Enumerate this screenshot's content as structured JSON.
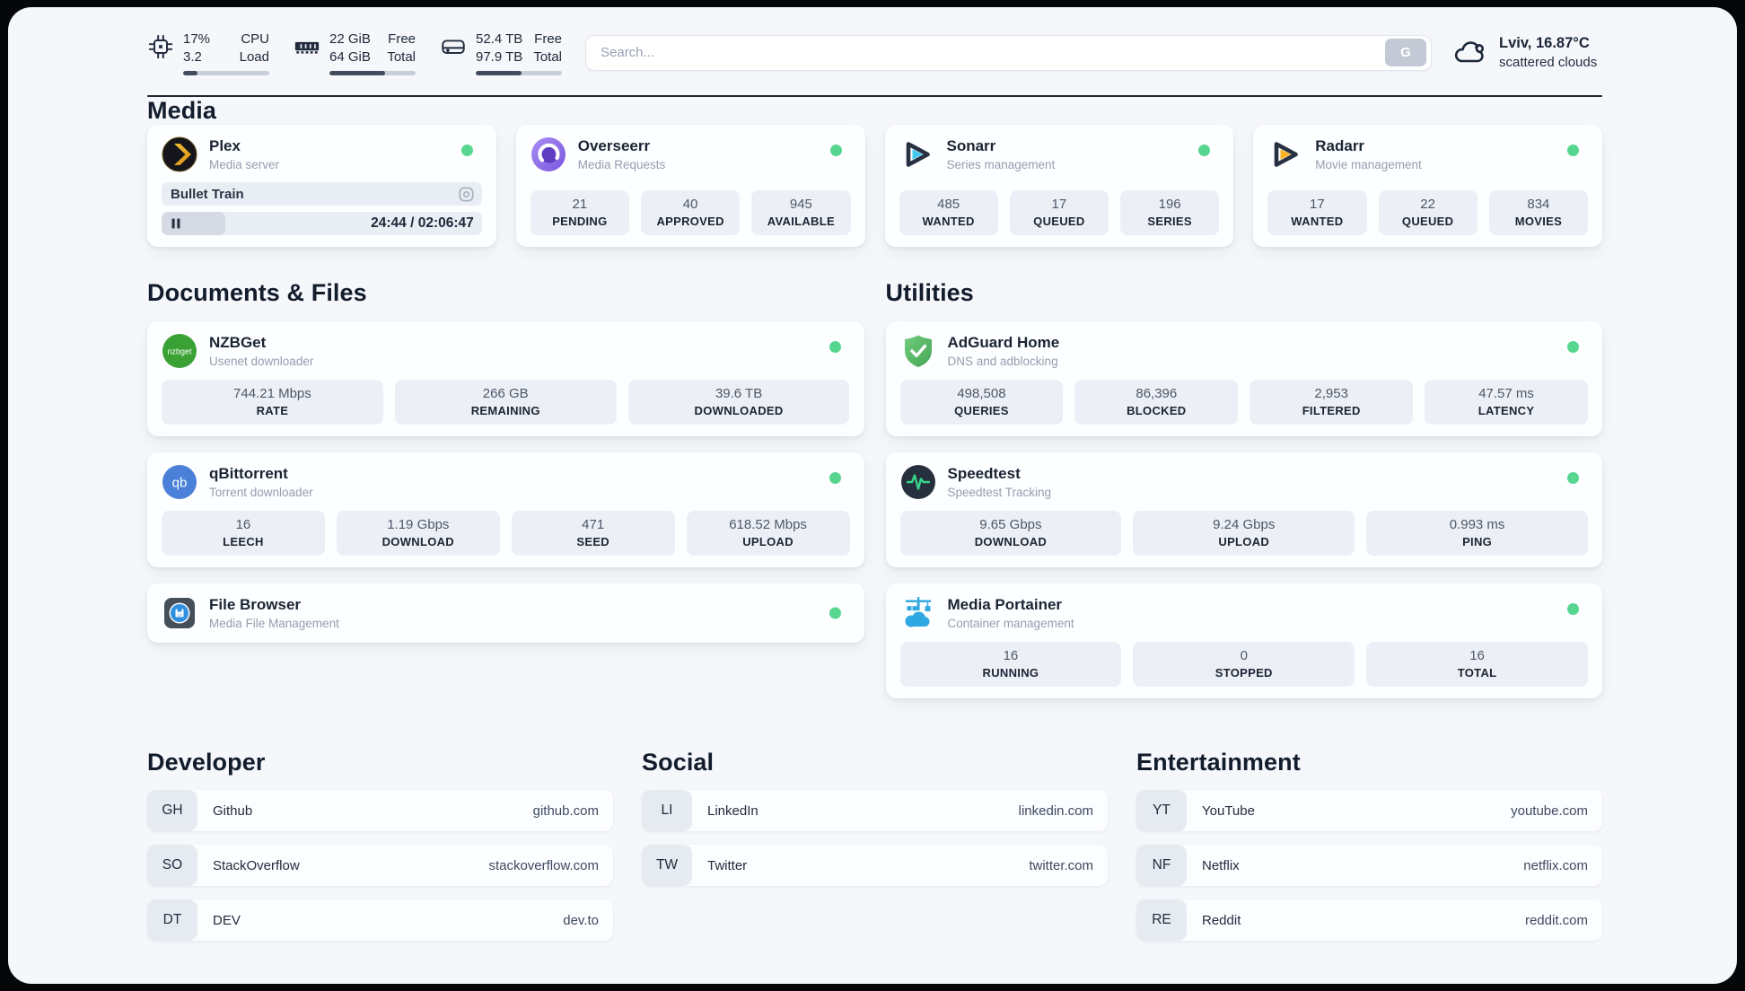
{
  "header": {
    "metrics": [
      {
        "value_top": "17%",
        "value_bottom": "3.2",
        "label_top": "CPU",
        "label_bottom": "Load",
        "progress": 17
      },
      {
        "value_top": "22 GiB",
        "value_bottom": "64 GiB",
        "label_top": "Free",
        "label_bottom": "Total",
        "progress": 65
      },
      {
        "value_top": "52.4 TB",
        "value_bottom": "97.9 TB",
        "label_top": "Free",
        "label_bottom": "Total",
        "progress": 53
      }
    ],
    "search": {
      "placeholder": "Search...",
      "button_label": "G"
    },
    "weather": {
      "location_temp": "Lviv, 16.87°C",
      "condition": "scattered clouds"
    }
  },
  "media": {
    "title": "Media",
    "plex": {
      "name": "Plex",
      "subtitle": "Media server",
      "now_playing": "Bullet Train",
      "time": "24:44 / 02:06:47",
      "progress": 20
    },
    "overseerr": {
      "name": "Overseerr",
      "subtitle": "Media Requests",
      "stats": [
        {
          "value": "21",
          "label": "PENDING"
        },
        {
          "value": "40",
          "label": "APPROVED"
        },
        {
          "value": "945",
          "label": "AVAILABLE"
        }
      ]
    },
    "sonarr": {
      "name": "Sonarr",
      "subtitle": "Series management",
      "stats": [
        {
          "value": "485",
          "label": "WANTED"
        },
        {
          "value": "17",
          "label": "QUEUED"
        },
        {
          "value": "196",
          "label": "SERIES"
        }
      ]
    },
    "radarr": {
      "name": "Radarr",
      "subtitle": "Movie management",
      "stats": [
        {
          "value": "17",
          "label": "WANTED"
        },
        {
          "value": "22",
          "label": "QUEUED"
        },
        {
          "value": "834",
          "label": "MOVIES"
        }
      ]
    }
  },
  "documents": {
    "title": "Documents & Files",
    "nzbget": {
      "name": "NZBGet",
      "subtitle": "Usenet downloader",
      "icon_text": "nzbget",
      "stats": [
        {
          "value": "744.21 Mbps",
          "label": "RATE"
        },
        {
          "value": "266 GB",
          "label": "REMAINING"
        },
        {
          "value": "39.6 TB",
          "label": "DOWNLOADED"
        }
      ]
    },
    "qbittorrent": {
      "name": "qBittorrent",
      "subtitle": "Torrent downloader",
      "icon_text": "qb",
      "stats": [
        {
          "value": "16",
          "label": "LEECH"
        },
        {
          "value": "1.19 Gbps",
          "label": "DOWNLOAD"
        },
        {
          "value": "471",
          "label": "SEED"
        },
        {
          "value": "618.52 Mbps",
          "label": "UPLOAD"
        }
      ]
    },
    "filebrowser": {
      "name": "File Browser",
      "subtitle": "Media File Management"
    }
  },
  "utilities": {
    "title": "Utilities",
    "adguard": {
      "name": "AdGuard Home",
      "subtitle": "DNS and adblocking",
      "stats": [
        {
          "value": "498,508",
          "label": "QUERIES"
        },
        {
          "value": "86,396",
          "label": "BLOCKED"
        },
        {
          "value": "2,953",
          "label": "FILTERED"
        },
        {
          "value": "47.57 ms",
          "label": "LATENCY"
        }
      ]
    },
    "speedtest": {
      "name": "Speedtest",
      "subtitle": "Speedtest Tracking",
      "stats": [
        {
          "value": "9.65 Gbps",
          "label": "DOWNLOAD"
        },
        {
          "value": "9.24 Gbps",
          "label": "UPLOAD"
        },
        {
          "value": "0.993 ms",
          "label": "PING"
        }
      ]
    },
    "portainer": {
      "name": "Media Portainer",
      "subtitle": "Container management",
      "stats": [
        {
          "value": "16",
          "label": "RUNNING"
        },
        {
          "value": "0",
          "label": "STOPPED"
        },
        {
          "value": "16",
          "label": "TOTAL"
        }
      ]
    }
  },
  "bookmarks": [
    {
      "title": "Developer",
      "items": [
        {
          "abbr": "GH",
          "name": "Github",
          "url": "github.com"
        },
        {
          "abbr": "SO",
          "name": "StackOverflow",
          "url": "stackoverflow.com"
        },
        {
          "abbr": "DT",
          "name": "DEV",
          "url": "dev.to"
        }
      ]
    },
    {
      "title": "Social",
      "items": [
        {
          "abbr": "LI",
          "name": "LinkedIn",
          "url": "linkedin.com"
        },
        {
          "abbr": "TW",
          "name": "Twitter",
          "url": "twitter.com"
        }
      ]
    },
    {
      "title": "Entertainment",
      "items": [
        {
          "abbr": "YT",
          "name": "YouTube",
          "url": "youtube.com"
        },
        {
          "abbr": "NF",
          "name": "Netflix",
          "url": "netflix.com"
        },
        {
          "abbr": "RE",
          "name": "Reddit",
          "url": "reddit.com"
        }
      ]
    }
  ],
  "colors": {
    "status_online": "#57d690",
    "bar_fill": "#424c5e",
    "accent_text": "#1b2537"
  }
}
